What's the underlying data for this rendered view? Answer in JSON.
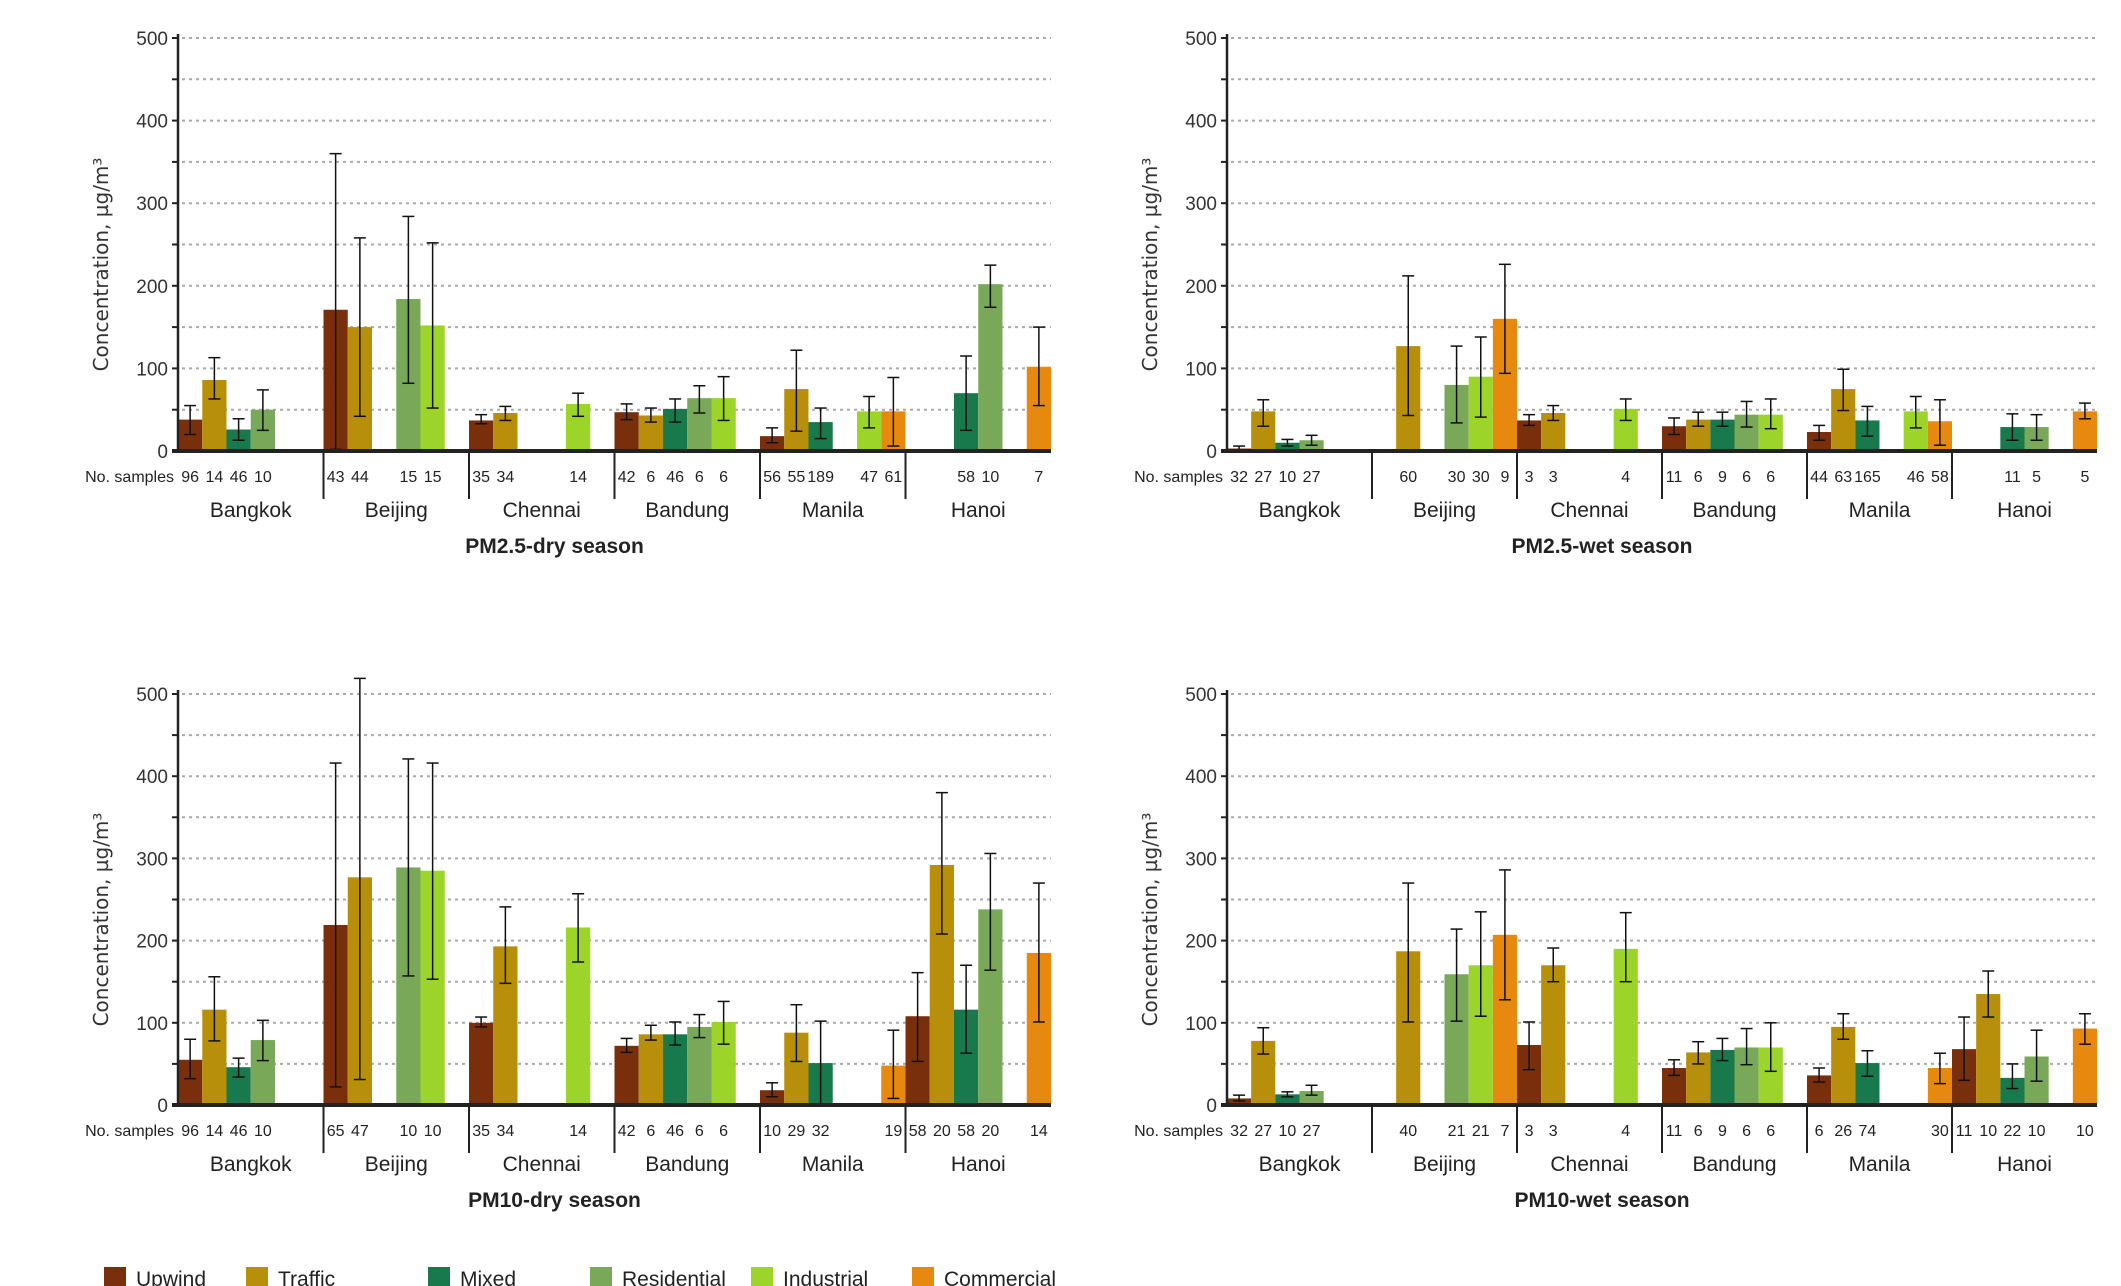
{
  "chart_data": {
    "type": "bar",
    "ylabel": "Concentration, µg/m³",
    "ylim": [
      0,
      500
    ],
    "yticks": [
      0,
      100,
      200,
      300,
      400,
      500
    ],
    "grid": true,
    "samples_label": "No. samples",
    "legend_placement": "bottom",
    "cities": [
      "Bangkok",
      "Beijing",
      "Chennai",
      "Bandung",
      "Manila",
      "Hanoi"
    ],
    "series": [
      {
        "name": "Upwind",
        "color": "#7a2f0c"
      },
      {
        "name": "Traffic",
        "color": "#b88f0a"
      },
      {
        "name": "Mixed",
        "color": "#187a4c"
      },
      {
        "name": "Residential",
        "color": "#78a858"
      },
      {
        "name": "Industrial",
        "color": "#9dd42a"
      },
      {
        "name": "Commercial",
        "color": "#e8890f"
      }
    ],
    "panels": [
      {
        "title": "PM2.5-dry season",
        "data": {
          "Bangkok": [
            [
              38,
              20,
              55,
              96
            ],
            [
              86,
              63,
              113,
              14
            ],
            [
              26,
              13,
              39,
              46
            ],
            [
              50,
              25,
              74,
              10
            ],
            null,
            null
          ],
          "Beijing": [
            [
              171,
              2,
              360,
              43
            ],
            [
              150,
              42,
              258,
              44
            ],
            null,
            [
              184,
              82,
              284,
              15
            ],
            [
              152,
              52,
              252,
              15
            ],
            null
          ],
          "Chennai": [
            [
              37,
              33,
              44,
              35
            ],
            [
              46,
              37,
              54,
              34
            ],
            null,
            null,
            [
              57,
              42,
              70,
              14
            ],
            null
          ],
          "Bandung": [
            [
              47,
              38,
              57,
              42
            ],
            [
              43,
              35,
              52,
              6
            ],
            [
              51,
              35,
              63,
              46
            ],
            [
              64,
              46,
              79,
              6
            ],
            [
              64,
              37,
              90,
              6
            ],
            null
          ],
          "Manila": [
            [
              18,
              10,
              28,
              56
            ],
            [
              75,
              24,
              122,
              55
            ],
            [
              35,
              15,
              52,
              189
            ],
            null,
            [
              48,
              28,
              66,
              47
            ],
            [
              48,
              6,
              89,
              61
            ]
          ],
          "Hanoi": [
            null,
            null,
            [
              70,
              25,
              115,
              58
            ],
            [
              202,
              174,
              225,
              10
            ],
            null,
            [
              102,
              55,
              150,
              7
            ]
          ]
        }
      },
      {
        "title": "PM2.5-wet season",
        "data": {
          "Bangkok": [
            [
              3,
              0,
              6,
              32
            ],
            [
              48,
              30,
              62,
              27
            ],
            [
              10,
              6,
              14,
              10
            ],
            [
              13,
              7,
              19,
              27
            ],
            null,
            null
          ],
          "Beijing": [
            null,
            [
              127,
              43,
              212,
              60
            ],
            null,
            [
              80,
              34,
              127,
              30
            ],
            [
              90,
              41,
              138,
              30
            ],
            [
              160,
              94,
              226,
              9
            ]
          ],
          "Chennai": [
            [
              37,
              31,
              44,
              3
            ],
            [
              46,
              37,
              55,
              3
            ],
            null,
            null,
            [
              51,
              37,
              63,
              4
            ],
            null
          ],
          "Bandung": [
            [
              30,
              20,
              40,
              11
            ],
            [
              38,
              30,
              47,
              6
            ],
            [
              38,
              30,
              47,
              9
            ],
            [
              44,
              29,
              60,
              6
            ],
            [
              44,
              27,
              63,
              6
            ],
            null
          ],
          "Manila": [
            [
              23,
              13,
              31,
              44
            ],
            [
              75,
              49,
              99,
              63
            ],
            [
              37,
              18,
              54,
              165
            ],
            null,
            [
              48,
              28,
              66,
              46
            ],
            [
              36,
              7,
              62,
              58
            ]
          ],
          "Hanoi": [
            null,
            null,
            [
              29,
              13,
              45,
              11
            ],
            [
              29,
              13,
              44,
              5
            ],
            null,
            [
              48,
              39,
              58,
              5
            ]
          ]
        }
      },
      {
        "title": "PM10-dry season",
        "data": {
          "Bangkok": [
            [
              55,
              32,
              80,
              96
            ],
            [
              116,
              78,
              156,
              14
            ],
            [
              46,
              34,
              57,
              46
            ],
            [
              79,
              54,
              103,
              10
            ],
            null,
            null
          ],
          "Beijing": [
            [
              219,
              22,
              416,
              65
            ],
            [
              277,
              31,
              519,
              47
            ],
            null,
            [
              289,
              157,
              421,
              10
            ],
            [
              285,
              153,
              416,
              10
            ],
            null
          ],
          "Chennai": [
            [
              100,
              95,
              107,
              35
            ],
            [
              193,
              148,
              241,
              34
            ],
            null,
            null,
            [
              216,
              174,
              257,
              14
            ],
            null
          ],
          "Bandung": [
            [
              72,
              64,
              81,
              42
            ],
            [
              86,
              79,
              97,
              6
            ],
            [
              86,
              73,
              101,
              46
            ],
            [
              95,
              82,
              110,
              6
            ],
            [
              101,
              74,
              126,
              6
            ],
            null
          ],
          "Manila": [
            [
              18,
              10,
              27,
              10
            ],
            [
              88,
              53,
              122,
              29
            ],
            [
              51,
              1,
              102,
              32
            ],
            null,
            null,
            [
              48,
              8,
              91,
              19
            ]
          ],
          "Hanoi": [
            [
              108,
              53,
              161,
              58
            ],
            [
              292,
              208,
              380,
              20
            ],
            [
              116,
              63,
              170,
              58
            ],
            [
              238,
              164,
              306,
              20
            ],
            null,
            [
              185,
              101,
              270,
              14
            ]
          ]
        }
      },
      {
        "title": "PM10-wet season",
        "data": {
          "Bangkok": [
            [
              8,
              5,
              12,
              32
            ],
            [
              78,
              62,
              94,
              27
            ],
            [
              13,
              10,
              16,
              10
            ],
            [
              17,
              12,
              24,
              27
            ],
            null,
            null
          ],
          "Beijing": [
            null,
            [
              187,
              101,
              270,
              40
            ],
            null,
            [
              159,
              102,
              214,
              21
            ],
            [
              170,
              108,
              235,
              21
            ],
            [
              207,
              128,
              286,
              7
            ]
          ],
          "Chennai": [
            [
              73,
              43,
              101,
              3
            ],
            [
              170,
              150,
              191,
              3
            ],
            null,
            null,
            [
              190,
              150,
              234,
              4
            ],
            null
          ],
          "Bandung": [
            [
              45,
              36,
              55,
              11
            ],
            [
              64,
              50,
              77,
              6
            ],
            [
              67,
              54,
              81,
              9
            ],
            [
              70,
              49,
              93,
              6
            ],
            [
              70,
              41,
              100,
              6
            ],
            null
          ],
          "Manila": [
            [
              36,
              28,
              45,
              6
            ],
            [
              95,
              80,
              111,
              26
            ],
            [
              51,
              35,
              66,
              74
            ],
            null,
            null,
            [
              45,
              26,
              63,
              30
            ]
          ],
          "Hanoi": [
            [
              68,
              30,
              107,
              11
            ],
            [
              135,
              107,
              163,
              10
            ],
            [
              33,
              20,
              50,
              22
            ],
            [
              59,
              29,
              91,
              10
            ],
            null,
            [
              93,
              74,
              111,
              10
            ]
          ]
        }
      }
    ]
  }
}
